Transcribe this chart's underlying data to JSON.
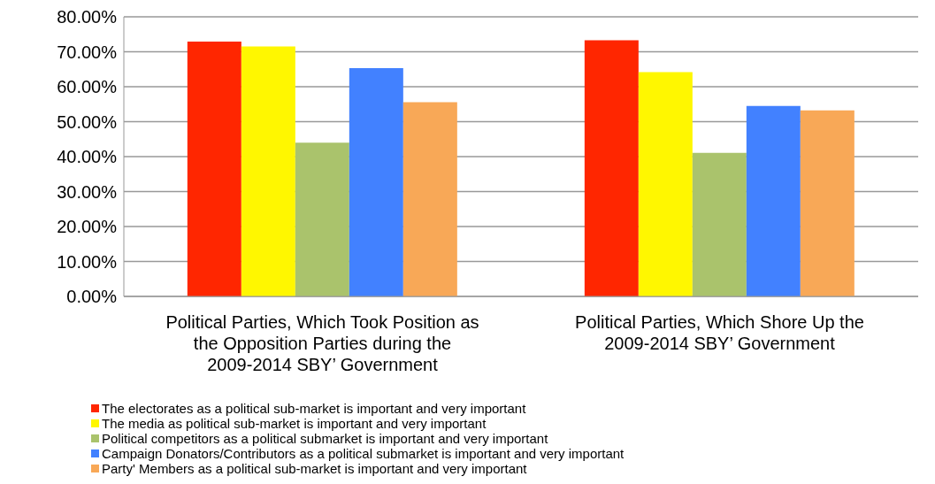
{
  "chart_data": {
    "type": "bar",
    "categories": [
      "Political Parties, Which Took Position as the Opposition Parties during the 2009-2014 SBY’ Government",
      "Political Parties, Which Shore Up the 2009-2014 SBY’ Government"
    ],
    "series": [
      {
        "name": "The electorates as a political sub-market is important and very important",
        "color": "#ff2600",
        "values": [
          72.9,
          73.3
        ]
      },
      {
        "name": "The media as political sub-market is important and very important",
        "color": "#fff700",
        "values": [
          71.5,
          64.2
        ]
      },
      {
        "name": "Political competitors as a political submarket is important and very important",
        "color": "#aac36c",
        "values": [
          44.0,
          41.1
        ]
      },
      {
        "name": "Campaign Donators/Contributors as a political submarket is important and very important",
        "color": "#4281ff",
        "values": [
          65.3,
          54.5
        ]
      },
      {
        "name": "Party' Members as a political sub-market is important and very important",
        "color": "#f8a857",
        "values": [
          55.6,
          53.2
        ]
      }
    ],
    "ylim": [
      0,
      80
    ],
    "yticks": [
      {
        "value": 0,
        "label": "0.00%"
      },
      {
        "value": 10,
        "label": "10.00%"
      },
      {
        "value": 20,
        "label": "20.00%"
      },
      {
        "value": 30,
        "label": "30.00%"
      },
      {
        "value": 40,
        "label": "40.00%"
      },
      {
        "value": 50,
        "label": "50.00%"
      },
      {
        "value": 60,
        "label": "60.00%"
      },
      {
        "value": 70,
        "label": "70.00%"
      },
      {
        "value": 80,
        "label": "80.00%"
      }
    ],
    "grid": "y",
    "legend": "bottom"
  }
}
